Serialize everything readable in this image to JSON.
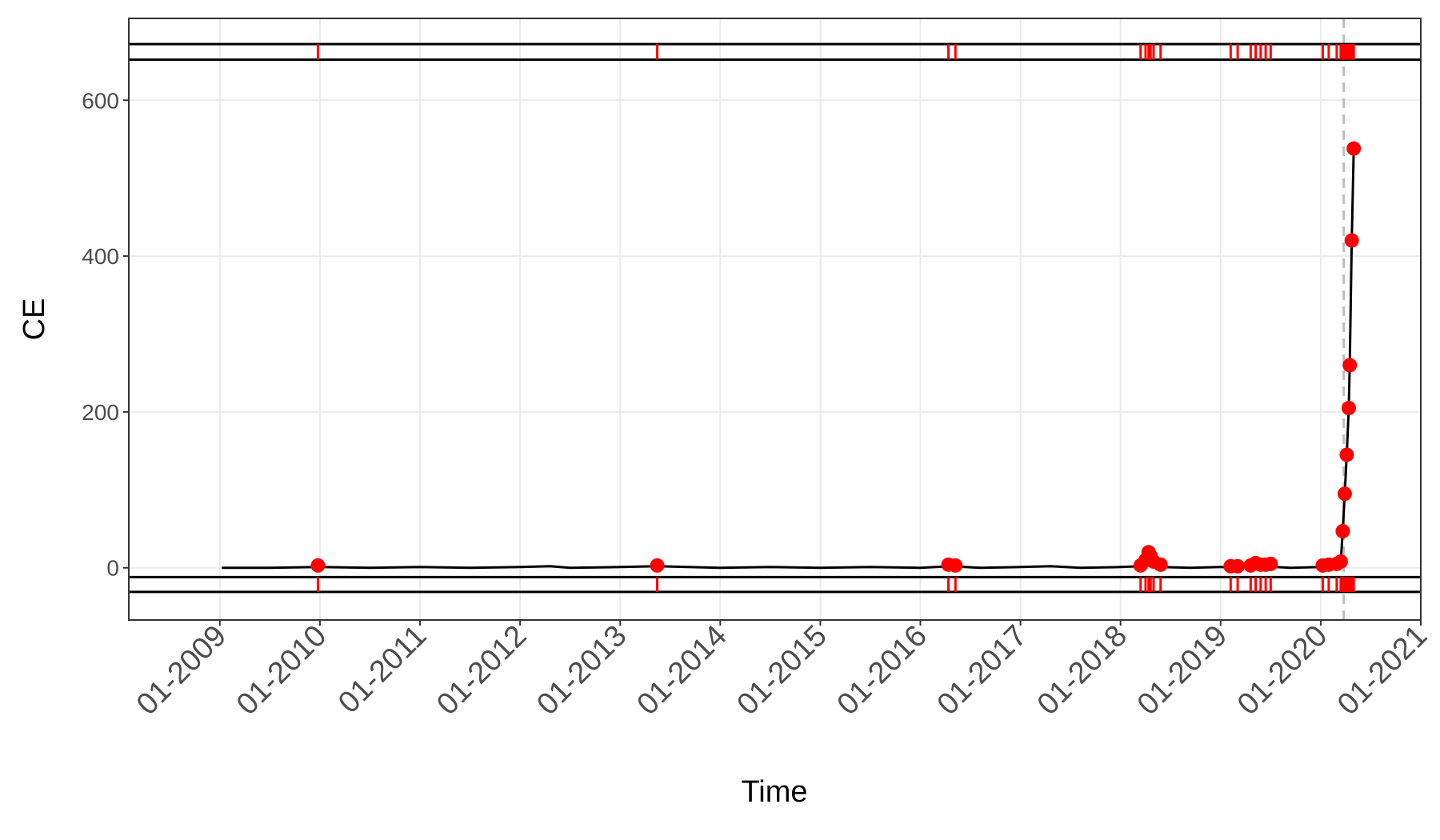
{
  "chart_data": {
    "type": "line",
    "x_label": "Time",
    "y_label": "CE",
    "xlim": [
      2008.09,
      2021.0
    ],
    "ylim": [
      -67,
      705
    ],
    "xticks": [
      {
        "value": 2009,
        "label": "01-2009"
      },
      {
        "value": 2010,
        "label": "01-2010"
      },
      {
        "value": 2011,
        "label": "01-2011"
      },
      {
        "value": 2012,
        "label": "01-2012"
      },
      {
        "value": 2013,
        "label": "01-2013"
      },
      {
        "value": 2014,
        "label": "01-2014"
      },
      {
        "value": 2015,
        "label": "01-2015"
      },
      {
        "value": 2016,
        "label": "01-2016"
      },
      {
        "value": 2017,
        "label": "01-2017"
      },
      {
        "value": 2018,
        "label": "01-2018"
      },
      {
        "value": 2019,
        "label": "01-2019"
      },
      {
        "value": 2020,
        "label": "01-2020"
      },
      {
        "value": 2021,
        "label": "01-2021"
      }
    ],
    "yticks": [
      0,
      200,
      400,
      600
    ],
    "grid": true,
    "hlines": [
      672,
      652,
      -12,
      -31
    ],
    "vline": 2020.23,
    "series": [
      {
        "color": "#000000",
        "x": [
          2009.02,
          2009.5,
          2010.0,
          2010.5,
          2011.0,
          2011.5,
          2012.0,
          2012.3,
          2012.5,
          2013.0,
          2013.37,
          2014.0,
          2014.5,
          2015.0,
          2015.5,
          2016.0,
          2016.3,
          2016.6,
          2017.0,
          2017.3,
          2017.6,
          2018.0,
          2018.2,
          2018.28,
          2018.4,
          2018.7,
          2019.0,
          2019.2,
          2019.4,
          2019.7,
          2020.0,
          2020.18,
          2020.2,
          2020.22,
          2020.24,
          2020.26,
          2020.28,
          2020.29,
          2020.31,
          2020.33
        ],
        "values": [
          0,
          0,
          1,
          0,
          1,
          0,
          1,
          2,
          0,
          1,
          2,
          0,
          1,
          0,
          1,
          0,
          2,
          0,
          1,
          2,
          0,
          1,
          2,
          3,
          1,
          0,
          1,
          0,
          2,
          0,
          1,
          2,
          8,
          47,
          95,
          145,
          205,
          260,
          420,
          538
        ]
      },
      {
        "color": "#ff0000",
        "marker": "point",
        "x": [
          2009.98,
          2013.37,
          2016.28,
          2016.35,
          2018.2,
          2018.25,
          2018.28,
          2018.3,
          2018.33,
          2018.4,
          2019.1,
          2019.17,
          2019.3,
          2019.35,
          2019.4,
          2019.45,
          2019.5,
          2020.02,
          2020.08,
          2020.16,
          2020.2,
          2020.22,
          2020.24,
          2020.26,
          2020.28,
          2020.29,
          2020.31,
          2020.33
        ],
        "values": [
          3,
          3,
          4,
          3,
          3,
          10,
          20,
          15,
          8,
          4,
          2,
          2,
          3,
          6,
          4,
          4,
          5,
          3,
          4,
          5,
          8,
          47,
          95,
          145,
          205,
          260,
          420,
          538
        ]
      }
    ]
  }
}
